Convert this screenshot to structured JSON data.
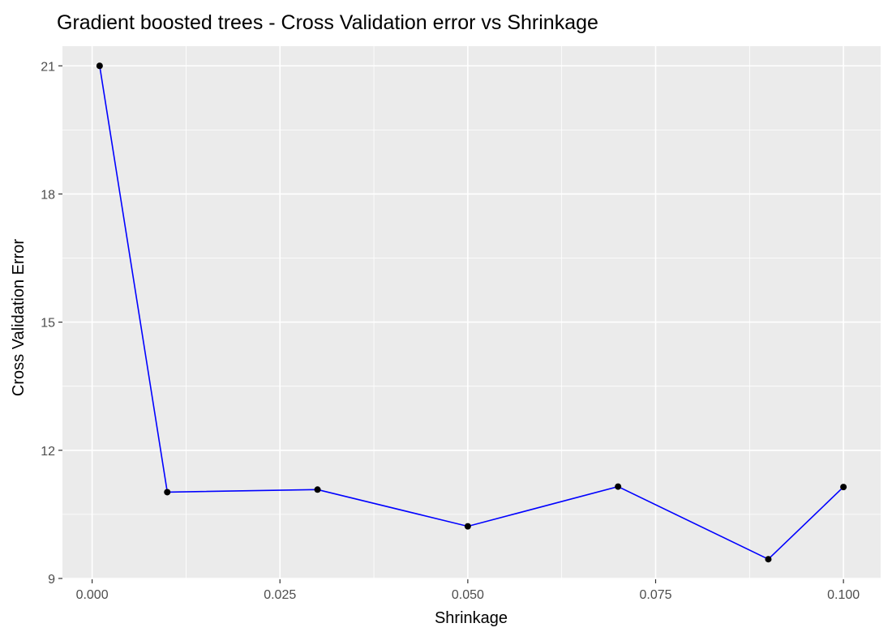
{
  "chart_data": {
    "type": "line",
    "title": "Gradient boosted trees - Cross Validation error vs Shrinkage",
    "xlabel": "Shrinkage",
    "ylabel": "Cross Validation Error",
    "xlim": [
      -0.00395,
      0.10495
    ],
    "ylim": [
      8.98,
      21.46
    ],
    "x_ticks": [
      0.0,
      0.025,
      0.05,
      0.075,
      0.1
    ],
    "x_tick_labels": [
      "0.000",
      "0.025",
      "0.050",
      "0.075",
      "0.100"
    ],
    "y_ticks": [
      9,
      12,
      15,
      18,
      21
    ],
    "y_tick_labels": [
      "9",
      "12",
      "15",
      "18",
      "21"
    ],
    "grid": true,
    "legend": "none",
    "series": [
      {
        "x": [
          0.001,
          0.01,
          0.03,
          0.05,
          0.07,
          0.09,
          0.1
        ],
        "y": [
          21.0,
          11.02,
          11.08,
          10.22,
          11.15,
          9.45,
          11.14
        ]
      }
    ],
    "colors": {
      "line": "#0000ff",
      "point": "#000000",
      "panel_background": "#ebebeb",
      "grid": "#ffffff",
      "tick_text": "#4d4d4d"
    }
  }
}
